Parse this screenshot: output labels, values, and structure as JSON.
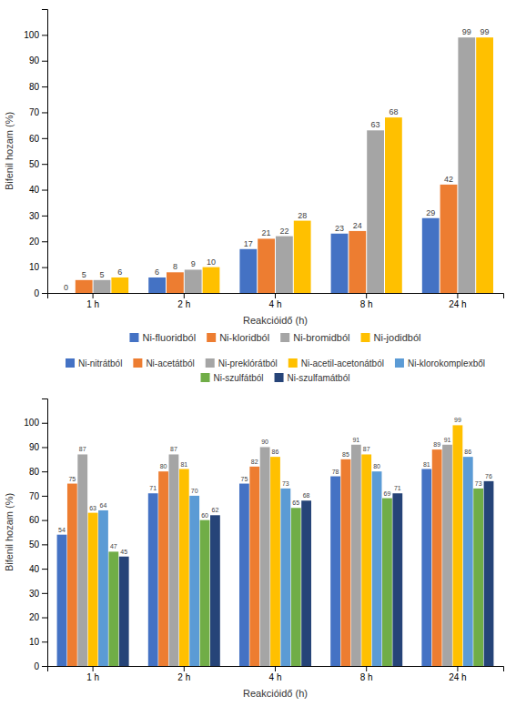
{
  "chart_data": [
    {
      "type": "bar",
      "xlabel": "Reakcióidő (h)",
      "ylabel": "Bifenil hozam (%)",
      "categories": [
        "1 h",
        "2 h",
        "4 h",
        "8 h",
        "24 h"
      ],
      "series": [
        {
          "name": "Ni-fluoridból",
          "color": "#4472C4",
          "values": [
            0,
            6,
            17,
            23,
            29
          ]
        },
        {
          "name": "Ni-kloridból",
          "color": "#ED7D31",
          "values": [
            5,
            8,
            21,
            24,
            42
          ]
        },
        {
          "name": "Ni-bromidból",
          "color": "#A5A5A5",
          "values": [
            5,
            9,
            22,
            63,
            99
          ]
        },
        {
          "name": "Ni-jodidból",
          "color": "#FFC000",
          "values": [
            6,
            10,
            28,
            68,
            99
          ]
        }
      ],
      "ylim": [
        0,
        110
      ],
      "yticks": [
        0,
        10,
        20,
        30,
        40,
        50,
        60,
        70,
        80,
        90,
        100
      ],
      "grid": false,
      "legend": "bottom",
      "data_labels": true
    },
    {
      "type": "bar",
      "xlabel": "Reakcióidő (h)",
      "ylabel": "Bifenil hozam (%)",
      "categories": [
        "1 h",
        "2 h",
        "4 h",
        "8 h",
        "24 h"
      ],
      "series": [
        {
          "name": "Ni-nitrátból",
          "color": "#4472C4",
          "values": [
            54,
            71,
            75,
            78,
            81
          ]
        },
        {
          "name": "Ni-acetátból",
          "color": "#ED7D31",
          "values": [
            75,
            80,
            82,
            85,
            89
          ]
        },
        {
          "name": "Ni-preklórátból",
          "color": "#A5A5A5",
          "values": [
            87,
            87,
            90,
            91,
            91
          ]
        },
        {
          "name": "Ni-acetil-acetonátból",
          "color": "#FFC000",
          "values": [
            63,
            81,
            86,
            87,
            99
          ]
        },
        {
          "name": "Ni-klorokomplexből",
          "color": "#5B9BD5",
          "values": [
            64,
            70,
            73,
            80,
            86
          ]
        },
        {
          "name": "Ni-szulfátból",
          "color": "#70AD47",
          "values": [
            47,
            60,
            65,
            69,
            73
          ]
        },
        {
          "name": "Ni-szulfamátból",
          "color": "#264478",
          "values": [
            45,
            62,
            68,
            71,
            76
          ]
        }
      ],
      "ylim": [
        0,
        110
      ],
      "yticks": [
        0,
        10,
        20,
        30,
        40,
        50,
        60,
        70,
        80,
        90,
        100
      ],
      "grid": false,
      "legend": "top",
      "data_labels": true
    }
  ]
}
